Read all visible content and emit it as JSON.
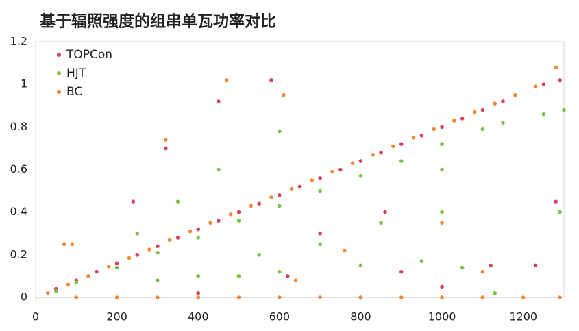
{
  "chart_data": {
    "type": "scatter",
    "title": "基于辐照强度的组串单瓦功率对比",
    "xlim": [
      0,
      1300
    ],
    "xticks": [
      0,
      200,
      400,
      600,
      800,
      1000,
      1200
    ],
    "ylim": [
      0,
      1.2
    ],
    "yticks": [
      0,
      0.2,
      0.4,
      0.6,
      0.8,
      1,
      1.2
    ],
    "grid": false,
    "legend": "top-left",
    "series": [
      {
        "name": "TOPCon",
        "color": "#d8435f",
        "x": [
          50,
          100,
          150,
          200,
          250,
          300,
          350,
          400,
          450,
          500,
          550,
          600,
          650,
          700,
          750,
          800,
          850,
          900,
          950,
          1000,
          1050,
          1100,
          1150,
          1250,
          1290,
          450,
          580,
          320,
          700,
          900,
          1000,
          400,
          800,
          1120,
          1280,
          1100,
          620,
          860,
          240,
          1230
        ],
        "values": [
          0.04,
          0.08,
          0.12,
          0.16,
          0.2,
          0.24,
          0.28,
          0.32,
          0.36,
          0.4,
          0.44,
          0.48,
          0.52,
          0.56,
          0.6,
          0.64,
          0.68,
          0.72,
          0.76,
          0.8,
          0.84,
          0.88,
          0.92,
          1.0,
          1.02,
          0.92,
          1.02,
          0.7,
          0.3,
          0.12,
          0.05,
          0.02,
          0,
          0.15,
          0.45,
          0,
          0.1,
          0.4,
          0.45,
          0.15
        ]
      },
      {
        "name": "HJT",
        "color": "#7cc242",
        "x": [
          50,
          100,
          200,
          300,
          400,
          500,
          600,
          700,
          800,
          900,
          1000,
          1100,
          1150,
          1250,
          1300,
          300,
          400,
          500,
          600,
          800,
          950,
          1050,
          350,
          450,
          600,
          700,
          850,
          1000,
          1130,
          1290,
          1000,
          550,
          250
        ],
        "values": [
          0.03,
          0.07,
          0.14,
          0.21,
          0.28,
          0.36,
          0.43,
          0.5,
          0.57,
          0.64,
          0.72,
          0.79,
          0.82,
          0.86,
          0.88,
          0.08,
          0.1,
          0.1,
          0.12,
          0.15,
          0.17,
          0.14,
          0.45,
          0.6,
          0.78,
          0.25,
          0.35,
          0.6,
          0.02,
          0.4,
          0.4,
          0.2,
          0.3
        ]
      },
      {
        "name": "BC",
        "color": "#f08a36",
        "x": [
          30,
          80,
          130,
          180,
          230,
          280,
          330,
          380,
          430,
          480,
          530,
          580,
          630,
          680,
          730,
          780,
          830,
          880,
          930,
          980,
          1030,
          1080,
          1130,
          1180,
          1230,
          1280,
          100,
          200,
          300,
          400,
          500,
          600,
          700,
          800,
          900,
          1000,
          1100,
          1200,
          1290,
          70,
          90,
          320,
          470,
          610,
          760,
          1000,
          640,
          1100
        ],
        "values": [
          0.02,
          0.06,
          0.1,
          0.145,
          0.185,
          0.225,
          0.27,
          0.31,
          0.35,
          0.39,
          0.43,
          0.47,
          0.51,
          0.55,
          0.59,
          0.63,
          0.67,
          0.71,
          0.75,
          0.79,
          0.83,
          0.87,
          0.91,
          0.95,
          0.99,
          1.08,
          0,
          0,
          0,
          0,
          0,
          0,
          0,
          0,
          0,
          0,
          0,
          0,
          0,
          0.25,
          0.25,
          0.74,
          1.02,
          0.95,
          0.22,
          0.35,
          0.08,
          0.12
        ]
      }
    ]
  }
}
